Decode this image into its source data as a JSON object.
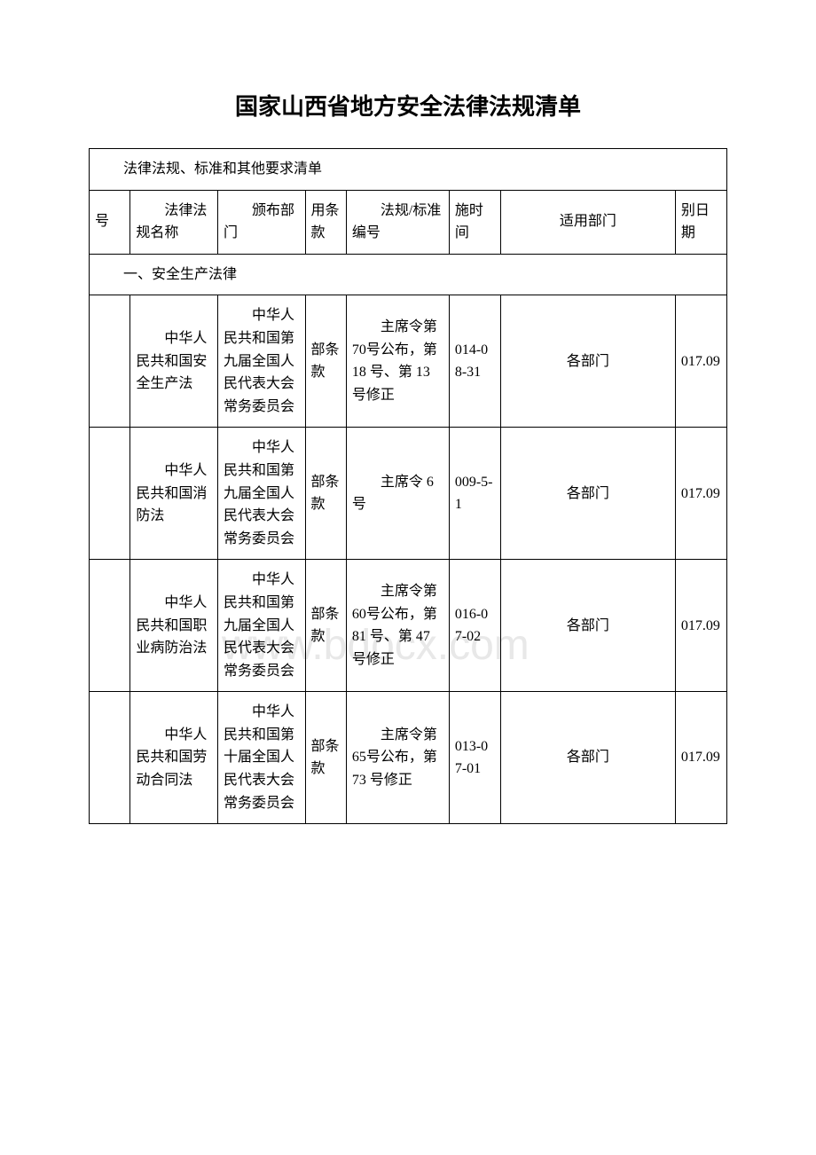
{
  "title": "国家山西省地方安全法律法规清单",
  "table_caption": "法律法规、标准和其他要求清单",
  "headers": {
    "c0": "号",
    "c1": "法律法规名称",
    "c2": "颁布部门",
    "c3": "用条款",
    "c4": "法规/标准编号",
    "c5": "施时间",
    "c6": "适用部门",
    "c7": "别日期"
  },
  "section_label": "一、安全生产法律",
  "rows": [
    {
      "name": "中华人民共和国安全生产法",
      "dept": "中华人民共和国第九届全国人民代表大会常务委员会",
      "clause": "部条款",
      "code": "主席令第 70号公布，第 18 号、第 13号修正",
      "date": "014-08-31",
      "apply": "各部门",
      "other": "017.09"
    },
    {
      "name": "中华人民共和国消防法",
      "dept": "中华人民共和国第九届全国人民代表大会常务委员会",
      "clause": "部条款",
      "code": "主席令 6 号",
      "date": "009-5-1",
      "apply": "各部门",
      "other": "017.09"
    },
    {
      "name": "中华人民共和国职业病防治法",
      "dept": "中华人民共和国第九届全国人民代表大会常务委员会",
      "clause": "部条款",
      "code": "主席令第 60号公布，第 81 号、第 47号修正",
      "date": "016-07-02",
      "apply": "各部门",
      "other": "017.09"
    },
    {
      "name": "中华人民共和国劳动合同法",
      "dept": "中华人民共和国第十届全国人民代表大会常务委员会",
      "clause": "部条款",
      "code": "主席令第 65号公布，第 73 号修正",
      "date": "013-07-01",
      "apply": "各部门",
      "other": "017.09"
    }
  ],
  "watermark": "www.bdocx.com",
  "colors": {
    "text": "#000000",
    "border": "#000000",
    "background": "#ffffff",
    "watermark": "#e8e8e8"
  }
}
